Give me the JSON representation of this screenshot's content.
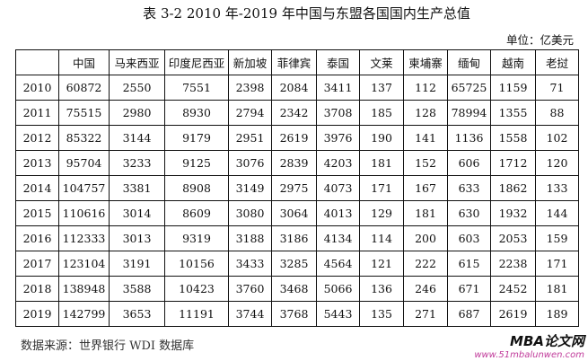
{
  "title": "表 3-2 2010 年-2019 年中国与东盟各国国内生产总值",
  "unit": "单位：亿美元",
  "table": {
    "headers": [
      "",
      "中国",
      "马来西亚",
      "印度尼西亚",
      "新加坡",
      "菲律宾",
      "泰国",
      "文莱",
      "柬埔寨",
      "缅甸",
      "越南",
      "老挝"
    ],
    "rows": [
      [
        "2010",
        "60872",
        "2550",
        "7551",
        "2398",
        "2084",
        "3411",
        "137",
        "112",
        "65725",
        "1159",
        "71"
      ],
      [
        "2011",
        "75515",
        "2980",
        "8930",
        "2794",
        "2342",
        "3708",
        "185",
        "128",
        "78994",
        "1355",
        "88"
      ],
      [
        "2012",
        "85322",
        "3144",
        "9179",
        "2951",
        "2619",
        "3976",
        "190",
        "141",
        "1136",
        "1558",
        "102"
      ],
      [
        "2013",
        "95704",
        "3233",
        "9125",
        "3076",
        "2839",
        "4203",
        "181",
        "152",
        "606",
        "1712",
        "120"
      ],
      [
        "2014",
        "104757",
        "3381",
        "8908",
        "3149",
        "2975",
        "4073",
        "171",
        "167",
        "633",
        "1862",
        "133"
      ],
      [
        "2015",
        "110616",
        "3014",
        "8609",
        "3080",
        "3064",
        "4013",
        "129",
        "181",
        "630",
        "1932",
        "144"
      ],
      [
        "2016",
        "112333",
        "3013",
        "9319",
        "3188",
        "3186",
        "4134",
        "114",
        "200",
        "603",
        "2053",
        "159"
      ],
      [
        "2017",
        "123104",
        "3191",
        "10156",
        "3433",
        "3285",
        "4564",
        "121",
        "222",
        "615",
        "2238",
        "171"
      ],
      [
        "2018",
        "138948",
        "3588",
        "10423",
        "3760",
        "3468",
        "5066",
        "136",
        "246",
        "671",
        "2452",
        "181"
      ],
      [
        "2019",
        "142799",
        "3653",
        "11191",
        "3744",
        "3768",
        "5443",
        "135",
        "271",
        "687",
        "2619",
        "189"
      ]
    ]
  },
  "source": "数据来源：世界银行 WDI 数据库",
  "watermark": {
    "line1": "MBA论文网",
    "line2": "www.51mbalunwen.com"
  }
}
